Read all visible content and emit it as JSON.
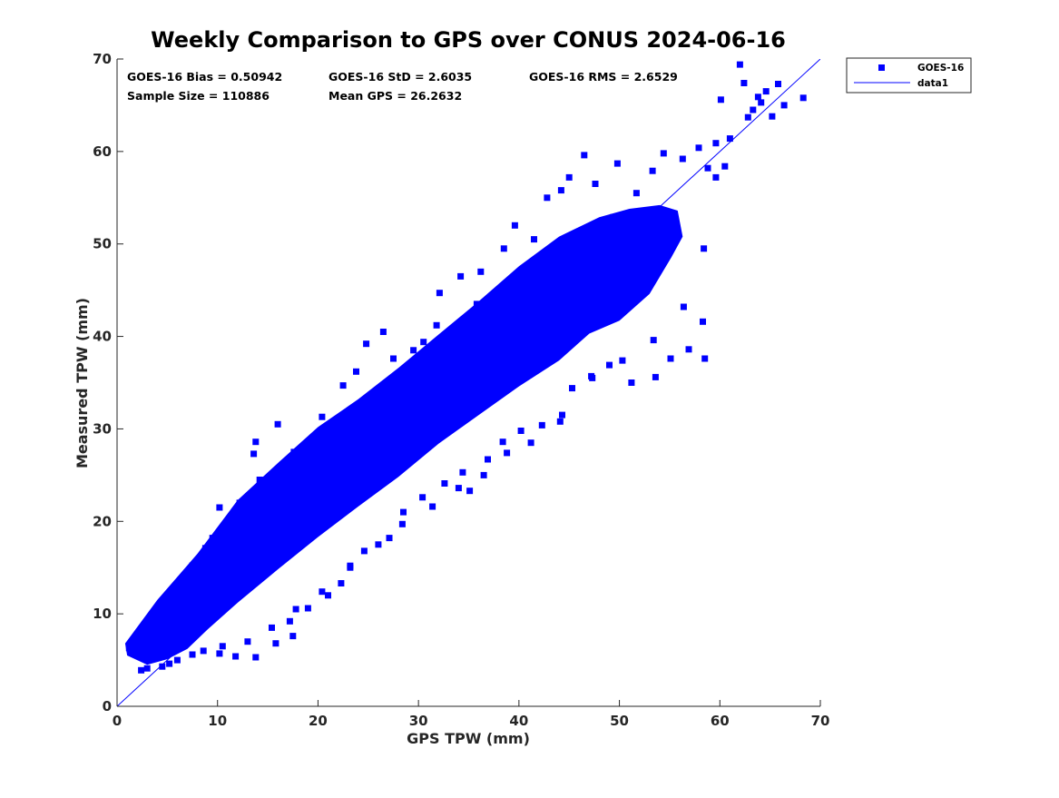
{
  "chart_data": {
    "type": "scatter",
    "title": "Weekly Comparison to GPS over CONUS 2024-06-16",
    "xlabel": "GPS TPW (mm)",
    "ylabel": "Measured TPW (mm)",
    "xlim": [
      0,
      70
    ],
    "ylim": [
      0,
      70
    ],
    "xticks": [
      0,
      10,
      20,
      30,
      40,
      50,
      60,
      70
    ],
    "yticks": [
      0,
      10,
      20,
      30,
      40,
      50,
      60,
      70
    ],
    "grid": false,
    "legend_position": "outside-top-right",
    "series": [
      {
        "name": "GOES-16",
        "marker": "square",
        "color": "#0000ff",
        "representative_points": [
          [
            1.2,
            6.3
          ],
          [
            1.8,
            6.8
          ],
          [
            2.4,
            3.9
          ],
          [
            3.0,
            4.1
          ],
          [
            3.4,
            5.9
          ],
          [
            4.5,
            4.3
          ],
          [
            5.2,
            4.6
          ],
          [
            6.0,
            5.0
          ],
          [
            7.5,
            5.6
          ],
          [
            8.6,
            6.0
          ],
          [
            10.2,
            5.7
          ],
          [
            11.8,
            5.4
          ],
          [
            13.8,
            5.3
          ],
          [
            15.8,
            6.8
          ],
          [
            17.5,
            7.6
          ],
          [
            17.2,
            9.2
          ],
          [
            19.0,
            10.6
          ],
          [
            21.0,
            12.0
          ],
          [
            22.3,
            13.3
          ],
          [
            23.2,
            15.0
          ],
          [
            24.6,
            16.8
          ],
          [
            27.1,
            18.2
          ],
          [
            28.5,
            21.0
          ],
          [
            30.4,
            22.6
          ],
          [
            32.6,
            24.1
          ],
          [
            34.4,
            25.3
          ],
          [
            35.1,
            23.3
          ],
          [
            36.9,
            26.7
          ],
          [
            38.4,
            28.6
          ],
          [
            40.2,
            29.8
          ],
          [
            42.3,
            30.4
          ],
          [
            44.3,
            31.5
          ],
          [
            45.3,
            34.4
          ],
          [
            47.3,
            35.5
          ],
          [
            49.0,
            36.9
          ],
          [
            51.2,
            35.0
          ],
          [
            53.6,
            35.6
          ],
          [
            55.1,
            37.6
          ],
          [
            56.9,
            38.6
          ],
          [
            58.5,
            37.6
          ],
          [
            58.3,
            41.6
          ],
          [
            7.5,
            15.2
          ],
          [
            8.8,
            17.1
          ],
          [
            9.5,
            18.2
          ],
          [
            10.2,
            21.5
          ],
          [
            11.7,
            19.7
          ],
          [
            12.2,
            22.0
          ],
          [
            13.6,
            27.3
          ],
          [
            14.2,
            24.5
          ],
          [
            16.5,
            24.0
          ],
          [
            17.6,
            27.5
          ],
          [
            20.0,
            29.0
          ],
          [
            21.2,
            30.5
          ],
          [
            13.8,
            28.6
          ],
          [
            16.0,
            30.5
          ],
          [
            20.4,
            31.3
          ],
          [
            22.5,
            34.7
          ],
          [
            23.8,
            36.2
          ],
          [
            24.8,
            39.2
          ],
          [
            26.5,
            40.5
          ],
          [
            27.5,
            37.6
          ],
          [
            29.5,
            38.5
          ],
          [
            30.5,
            39.4
          ],
          [
            31.8,
            41.2
          ],
          [
            32.1,
            44.7
          ],
          [
            34.2,
            46.5
          ],
          [
            35.8,
            43.5
          ],
          [
            36.2,
            47.0
          ],
          [
            38.5,
            49.5
          ],
          [
            39.6,
            52.0
          ],
          [
            41.5,
            50.5
          ],
          [
            42.8,
            55.0
          ],
          [
            44.2,
            55.8
          ],
          [
            45.0,
            57.2
          ],
          [
            46.5,
            59.6
          ],
          [
            47.6,
            56.5
          ],
          [
            49.8,
            58.7
          ],
          [
            51.7,
            55.5
          ],
          [
            53.3,
            57.9
          ],
          [
            54.4,
            59.8
          ],
          [
            56.3,
            59.2
          ],
          [
            57.9,
            60.4
          ],
          [
            58.8,
            58.2
          ],
          [
            59.6,
            60.9
          ],
          [
            60.5,
            58.4
          ],
          [
            61.0,
            61.4
          ],
          [
            62.0,
            69.4
          ],
          [
            62.4,
            67.4
          ],
          [
            62.8,
            63.7
          ],
          [
            63.3,
            64.5
          ],
          [
            63.8,
            65.9
          ],
          [
            64.1,
            65.3
          ],
          [
            64.6,
            66.5
          ],
          [
            65.2,
            63.8
          ],
          [
            65.8,
            67.3
          ],
          [
            66.4,
            65.0
          ],
          [
            68.3,
            65.8
          ],
          [
            60.1,
            65.6
          ],
          [
            59.6,
            57.2
          ],
          [
            58.4,
            49.5
          ],
          [
            56.4,
            43.2
          ],
          [
            53.4,
            39.6
          ],
          [
            50.3,
            37.4
          ],
          [
            47.2,
            35.7
          ],
          [
            44.1,
            30.8
          ],
          [
            41.2,
            28.5
          ],
          [
            38.8,
            27.4
          ],
          [
            36.5,
            25.0
          ],
          [
            34.0,
            23.6
          ],
          [
            31.4,
            21.6
          ],
          [
            28.4,
            19.7
          ],
          [
            26.0,
            17.5
          ],
          [
            23.2,
            15.2
          ],
          [
            20.4,
            12.4
          ],
          [
            17.8,
            10.5
          ],
          [
            15.4,
            8.5
          ],
          [
            13.0,
            7.0
          ],
          [
            10.5,
            6.5
          ],
          [
            5.5,
            12.4
          ],
          [
            6.5,
            13.3
          ],
          [
            7.2,
            11.8
          ],
          [
            8.4,
            10.9
          ],
          [
            9.6,
            14.1
          ],
          [
            11.4,
            16.9
          ],
          [
            12.8,
            18.4
          ],
          [
            14.5,
            19.3
          ],
          [
            15.9,
            21.6
          ],
          [
            17.4,
            23.9
          ],
          [
            18.6,
            25.5
          ],
          [
            20.0,
            27.3
          ],
          [
            21.3,
            28.3
          ],
          [
            22.6,
            29.8
          ],
          [
            24.1,
            30.9
          ],
          [
            25.5,
            33.0
          ],
          [
            27.0,
            34.8
          ],
          [
            28.4,
            35.4
          ],
          [
            29.8,
            36.9
          ],
          [
            31.2,
            38.6
          ],
          [
            32.6,
            39.8
          ],
          [
            34.0,
            40.7
          ],
          [
            35.4,
            42.5
          ],
          [
            36.8,
            43.7
          ],
          [
            38.2,
            45.1
          ],
          [
            39.6,
            46.4
          ],
          [
            41.0,
            47.6
          ],
          [
            42.4,
            48.4
          ],
          [
            43.8,
            49.7
          ],
          [
            45.2,
            50.3
          ],
          [
            46.6,
            51.5
          ],
          [
            48.0,
            52.2
          ],
          [
            49.4,
            52.9
          ],
          [
            50.8,
            53.2
          ],
          [
            52.2,
            53.5
          ],
          [
            53.6,
            53.3
          ],
          [
            55.0,
            53.4
          ]
        ]
      },
      {
        "name": "data1",
        "type": "line",
        "color": "#0000ff",
        "x": [
          0,
          70
        ],
        "y": [
          0,
          70
        ]
      }
    ],
    "annotations": [
      {
        "label": "GOES-16 Bias = 0.50942"
      },
      {
        "label": "GOES-16 StD = 2.6035"
      },
      {
        "label": "GOES-16 RMS = 2.6529"
      },
      {
        "label": "Sample Size = 110886"
      },
      {
        "label": "Mean GPS = 26.2632"
      }
    ]
  }
}
